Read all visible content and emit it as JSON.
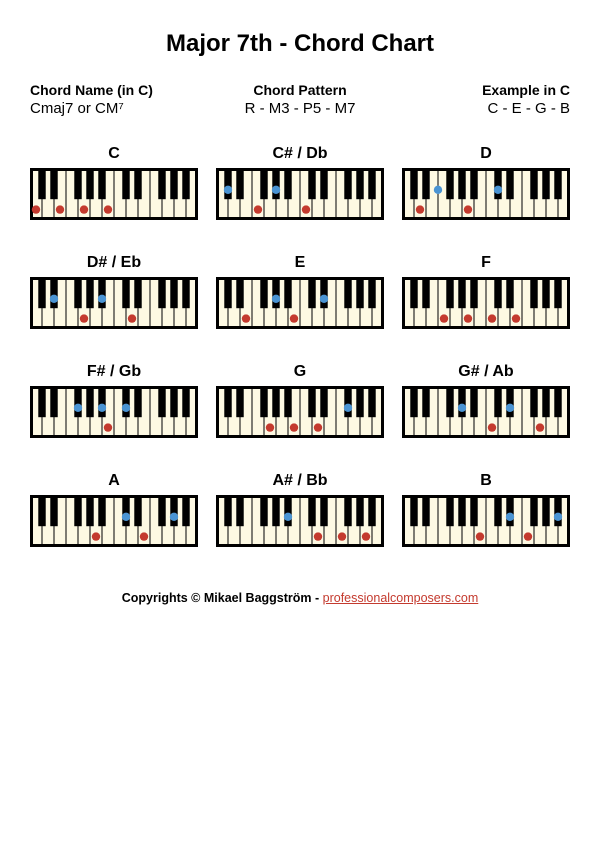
{
  "title": "Major 7th - Chord Chart",
  "header": {
    "col1_label": "Chord Name (in C)",
    "col1_value": "Cmaj7 or CM⁷",
    "col2_label": "Chord Pattern",
    "col2_value": "R - M3 - P5 - M7",
    "col3_label": "Example in C",
    "col3_value": "C - E - G - B"
  },
  "keyboard": {
    "white_key_color": "#fdf9e3",
    "black_key_color": "#000000",
    "border_color": "#000000",
    "red_dot_color": "#c43a2e",
    "blue_dot_color": "#4a94d3",
    "white_keys": 14,
    "dot_radius": 4.2
  },
  "chords": [
    {
      "label": "C",
      "red": [
        0,
        2,
        4,
        6
      ],
      "blue": []
    },
    {
      "label": "C# / Db",
      "red": [
        3,
        7
      ],
      "blue": [
        0.5,
        4.5
      ]
    },
    {
      "label": "D",
      "red": [
        1,
        5
      ],
      "blue": [
        2.5,
        7.5
      ]
    },
    {
      "label": "D# / Eb",
      "red": [
        4,
        8
      ],
      "blue": [
        1.5,
        5.5
      ]
    },
    {
      "label": "E",
      "red": [
        2,
        6
      ],
      "blue": [
        4.5,
        8.5
      ]
    },
    {
      "label": "F",
      "red": [
        3,
        5,
        7,
        9
      ],
      "blue": []
    },
    {
      "label": "F# / Gb",
      "red": [
        6
      ],
      "blue": [
        3.5,
        5.5,
        7.5
      ]
    },
    {
      "label": "G",
      "red": [
        4,
        6,
        8
      ],
      "blue": [
        10.5
      ]
    },
    {
      "label": "G# / Ab",
      "red": [
        7,
        11
      ],
      "blue": [
        4.5,
        8.5
      ]
    },
    {
      "label": "A",
      "red": [
        5,
        9
      ],
      "blue": [
        7.5,
        11.5
      ]
    },
    {
      "label": "A# / Bb",
      "red": [
        8,
        10,
        12
      ],
      "blue": [
        5.5
      ]
    },
    {
      "label": "B",
      "red": [
        6,
        10
      ],
      "blue": [
        8.5,
        12.5
      ]
    }
  ],
  "footer": {
    "prefix": "Copyrights © Mikael Baggström - ",
    "link_text": "professionalcomposers.com"
  }
}
